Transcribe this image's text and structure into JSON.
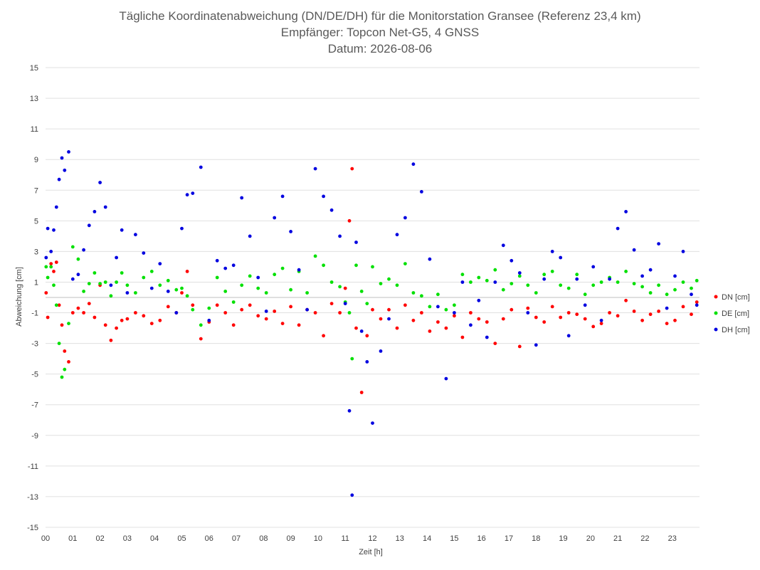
{
  "chart_data": {
    "type": "scatter",
    "title_lines": [
      "Tägliche Koordinatenabweichung (DN/DE/DH) für die Monitorstation Gransee (Referenz 23,4 km)",
      "Empfänger: Topcon Net-G5, 4 GNSS",
      "Datum: 2026-08-06"
    ],
    "xlabel": "Zeit [h]",
    "ylabel": "Abweichung [cm]",
    "xlim": [
      0,
      24
    ],
    "ylim": [
      -15,
      15
    ],
    "x_ticks": [
      0,
      1,
      2,
      3,
      4,
      5,
      6,
      7,
      8,
      9,
      10,
      11,
      12,
      13,
      14,
      15,
      16,
      17,
      18,
      19,
      20,
      21,
      22,
      23
    ],
    "x_tick_labels": [
      "00",
      "01",
      "02",
      "03",
      "04",
      "05",
      "06",
      "07",
      "08",
      "09",
      "10",
      "11",
      "12",
      "13",
      "14",
      "15",
      "16",
      "17",
      "18",
      "19",
      "20",
      "21",
      "22",
      "23"
    ],
    "y_ticks": [
      15,
      13,
      11,
      9,
      7,
      5,
      3,
      1,
      -1,
      -3,
      -5,
      -7,
      -9,
      -11,
      -13,
      -15
    ],
    "y_tick_labels": [
      "15",
      "13",
      "11",
      "9",
      "7",
      "5",
      "3",
      "1",
      "-1",
      "-3",
      "-5",
      "-7",
      "-9",
      "-11",
      "-13",
      "-15"
    ],
    "grid": true,
    "legend_position": "right",
    "colors": {
      "DN": "#ff0000",
      "DE": "#00e000",
      "DH": "#0000e0",
      "grid": "#e0e0e0",
      "zero_line": "#bfbfbf"
    },
    "series": [
      {
        "name": "DN [cm]",
        "key": "DN",
        "x": [
          0.02,
          0.08,
          0.2,
          0.3,
          0.4,
          0.5,
          0.6,
          0.7,
          0.85,
          1.0,
          1.2,
          1.4,
          1.6,
          1.8,
          2.0,
          2.2,
          2.4,
          2.6,
          2.8,
          3.0,
          3.3,
          3.6,
          3.9,
          4.2,
          4.5,
          4.8,
          5.0,
          5.2,
          5.4,
          5.7,
          6.0,
          6.3,
          6.6,
          6.9,
          7.2,
          7.5,
          7.8,
          8.1,
          8.4,
          8.7,
          9.0,
          9.3,
          9.6,
          9.9,
          10.2,
          10.5,
          10.8,
          11.0,
          11.15,
          11.25,
          11.4,
          11.6,
          11.8,
          12.0,
          12.3,
          12.6,
          12.9,
          13.2,
          13.5,
          13.8,
          14.1,
          14.4,
          14.7,
          15.0,
          15.3,
          15.6,
          15.9,
          16.2,
          16.5,
          16.8,
          17.1,
          17.4,
          17.7,
          18.0,
          18.3,
          18.6,
          18.9,
          19.2,
          19.5,
          19.8,
          20.1,
          20.4,
          20.7,
          21.0,
          21.3,
          21.6,
          21.9,
          22.2,
          22.5,
          22.8,
          23.1,
          23.4,
          23.7,
          23.9
        ],
        "y": [
          0.3,
          -1.3,
          2.2,
          1.7,
          2.3,
          -0.5,
          -1.8,
          -3.5,
          -4.2,
          -1.0,
          -0.7,
          -1.0,
          -0.4,
          -1.3,
          0.8,
          -1.8,
          -2.8,
          -2.0,
          -1.5,
          -1.4,
          -1.0,
          -1.2,
          -1.7,
          -1.5,
          -0.6,
          -1.0,
          0.3,
          1.7,
          -0.5,
          -2.7,
          -1.6,
          -0.5,
          -1.0,
          -1.8,
          -0.8,
          -0.5,
          -1.2,
          -1.4,
          -0.9,
          -1.7,
          -0.6,
          -1.8,
          -0.8,
          -1.0,
          -2.5,
          -0.4,
          -1.0,
          0.6,
          5.0,
          8.4,
          -2.0,
          -6.2,
          -2.5,
          -0.8,
          -1.4,
          -0.8,
          -2.0,
          -0.5,
          -1.5,
          -1.0,
          -2.2,
          -1.6,
          -2.0,
          -1.2,
          -2.6,
          -1.0,
          -1.4,
          -1.6,
          -3.0,
          -1.4,
          -0.8,
          -3.2,
          -0.7,
          -1.3,
          -1.6,
          -0.6,
          -1.3,
          -1.0,
          -1.1,
          -1.4,
          -1.9,
          -1.7,
          -1.0,
          -1.2,
          -0.2,
          -0.9,
          -1.5,
          -1.1,
          -0.9,
          -1.7,
          -1.5,
          -0.6,
          -1.1,
          -0.3
        ]
      },
      {
        "name": "DE [cm]",
        "key": "DE",
        "x": [
          0.02,
          0.08,
          0.2,
          0.3,
          0.4,
          0.5,
          0.6,
          0.7,
          0.85,
          1.0,
          1.2,
          1.4,
          1.6,
          1.8,
          2.0,
          2.2,
          2.4,
          2.6,
          2.8,
          3.0,
          3.3,
          3.6,
          3.9,
          4.2,
          4.5,
          4.8,
          5.0,
          5.2,
          5.4,
          5.7,
          6.0,
          6.3,
          6.6,
          6.9,
          7.2,
          7.5,
          7.8,
          8.1,
          8.4,
          8.7,
          9.0,
          9.3,
          9.6,
          9.9,
          10.2,
          10.5,
          10.8,
          11.0,
          11.15,
          11.25,
          11.4,
          11.6,
          11.8,
          12.0,
          12.3,
          12.6,
          12.9,
          13.2,
          13.5,
          13.8,
          14.1,
          14.4,
          14.7,
          15.0,
          15.3,
          15.6,
          15.9,
          16.2,
          16.5,
          16.8,
          17.1,
          17.4,
          17.7,
          18.0,
          18.3,
          18.6,
          18.9,
          19.2,
          19.5,
          19.8,
          20.1,
          20.4,
          20.7,
          21.0,
          21.3,
          21.6,
          21.9,
          22.2,
          22.5,
          22.8,
          23.1,
          23.4,
          23.7,
          23.9
        ],
        "y": [
          2.0,
          1.3,
          2.0,
          0.8,
          -0.5,
          -3.0,
          -5.2,
          -4.7,
          -1.7,
          3.3,
          2.5,
          0.4,
          0.9,
          1.6,
          0.9,
          1.0,
          0.1,
          1.0,
          1.6,
          0.8,
          0.3,
          1.3,
          1.7,
          0.8,
          1.1,
          0.5,
          0.6,
          0.1,
          -0.8,
          -1.8,
          -0.7,
          1.3,
          0.4,
          -0.3,
          0.8,
          1.4,
          0.6,
          0.3,
          1.5,
          1.9,
          0.5,
          1.7,
          0.3,
          2.7,
          2.1,
          1.0,
          0.7,
          -0.3,
          -1.0,
          -4.0,
          2.1,
          0.4,
          -0.4,
          2.0,
          0.9,
          1.2,
          0.8,
          2.2,
          0.3,
          0.1,
          -0.6,
          0.2,
          -0.8,
          -0.5,
          1.5,
          1.0,
          1.3,
          1.1,
          1.8,
          0.5,
          0.9,
          1.4,
          0.8,
          0.3,
          1.5,
          1.7,
          0.8,
          0.6,
          1.5,
          0.2,
          0.8,
          1.0,
          1.3,
          1.0,
          1.7,
          0.9,
          0.7,
          0.3,
          0.8,
          0.2,
          0.5,
          1.0,
          0.6,
          1.1
        ]
      },
      {
        "name": "DH [cm]",
        "key": "DH",
        "x": [
          0.02,
          0.08,
          0.2,
          0.3,
          0.4,
          0.5,
          0.6,
          0.7,
          0.85,
          1.0,
          1.2,
          1.4,
          1.6,
          1.8,
          2.0,
          2.2,
          2.4,
          2.6,
          2.8,
          3.0,
          3.3,
          3.6,
          3.9,
          4.2,
          4.5,
          4.8,
          5.0,
          5.2,
          5.4,
          5.7,
          6.0,
          6.3,
          6.6,
          6.9,
          7.2,
          7.5,
          7.8,
          8.1,
          8.4,
          8.7,
          9.0,
          9.3,
          9.6,
          9.9,
          10.2,
          10.5,
          10.8,
          11.0,
          11.15,
          11.25,
          11.4,
          11.6,
          11.8,
          12.0,
          12.3,
          12.6,
          12.9,
          13.2,
          13.5,
          13.8,
          14.1,
          14.4,
          14.7,
          15.0,
          15.3,
          15.6,
          15.9,
          16.2,
          16.5,
          16.8,
          17.1,
          17.4,
          17.7,
          18.0,
          18.3,
          18.6,
          18.9,
          19.2,
          19.5,
          19.8,
          20.1,
          20.4,
          20.7,
          21.0,
          21.3,
          21.6,
          21.9,
          22.2,
          22.5,
          22.8,
          23.1,
          23.4,
          23.7,
          23.9
        ],
        "y": [
          2.6,
          4.5,
          3.0,
          4.4,
          5.9,
          7.7,
          9.1,
          8.3,
          9.5,
          1.2,
          1.5,
          3.1,
          4.7,
          5.6,
          7.5,
          5.9,
          0.8,
          2.6,
          4.4,
          0.3,
          4.1,
          2.9,
          0.6,
          2.2,
          0.4,
          -1.0,
          4.5,
          6.7,
          6.8,
          8.5,
          -1.5,
          2.4,
          1.9,
          2.1,
          6.5,
          4.0,
          1.3,
          -0.9,
          5.2,
          6.6,
          4.3,
          1.8,
          -0.8,
          8.4,
          6.6,
          5.7,
          4.0,
          -0.4,
          -7.4,
          -12.9,
          3.6,
          -2.2,
          -4.2,
          -8.2,
          -3.5,
          -1.4,
          4.1,
          5.2,
          8.7,
          6.9,
          2.5,
          -0.6,
          -5.3,
          -1.0,
          1.0,
          -1.8,
          -0.2,
          -2.6,
          1.0,
          3.4,
          2.4,
          1.6,
          -1.0,
          -3.1,
          1.2,
          3.0,
          2.6,
          -2.5,
          1.2,
          -0.5,
          2.0,
          -1.5,
          1.2,
          4.5,
          5.6,
          3.1,
          1.4,
          1.8,
          3.5,
          -0.7,
          1.4,
          3.0,
          0.2,
          -0.5
        ]
      }
    ]
  }
}
